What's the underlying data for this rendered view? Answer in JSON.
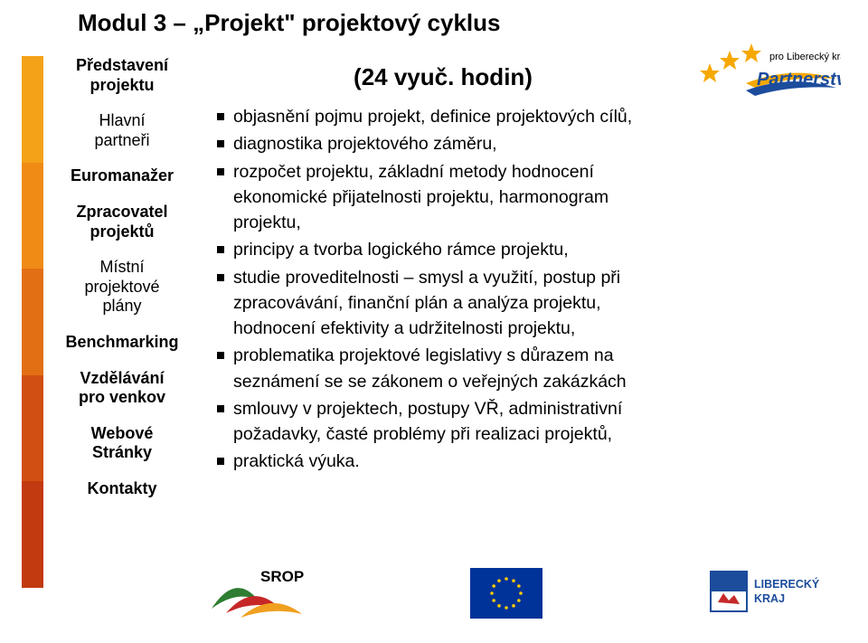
{
  "title": "Modul 3 – „Projekt\" projektový cyklus",
  "sidebar": {
    "items": [
      {
        "lines": [
          "Představení",
          "projektu"
        ],
        "bold": true
      },
      {
        "lines": [
          "Hlavní",
          "partneři"
        ],
        "bold": false
      },
      {
        "lines": [
          "Euromanažer"
        ],
        "bold": true
      },
      {
        "lines": [
          "Zpracovatel",
          "projektů"
        ],
        "bold": true
      },
      {
        "lines": [
          "Místní",
          "projektové",
          "plány"
        ],
        "bold": false
      },
      {
        "lines": [
          "Benchmarking"
        ],
        "bold": true
      },
      {
        "lines": [
          "Vzdělávání",
          "pro venkov"
        ],
        "bold": true
      },
      {
        "lines": [
          "Webové",
          "Stránky"
        ],
        "bold": true
      },
      {
        "lines": [
          "Kontakty"
        ],
        "bold": true
      }
    ]
  },
  "side_bar_colors": [
    "#f4a218",
    "#f08b16",
    "#e36f14",
    "#d14f12",
    "#c23a10"
  ],
  "subhead": "(24 vyuč. hodin)",
  "bullets": [
    "objasnění pojmu projekt, definice projektových cílů,",
    "diagnostika projektového záměru,",
    "rozpočet projektu, základní metody hodnocení ekonomické přijatelnosti projektu, harmonogram projektu,",
    "principy a tvorba logického rámce projektu,",
    "studie proveditelnosti – smysl a využití, postup při zpracovávání, finanční plán a analýza projektu, hodnocení efektivity a udržitelnosti projektu,",
    "problematika projektové legislativy s důrazem na seznámení se se zákonem o veřejných zakázkách",
    "smlouvy v projektech, postupy VŘ, administrativní požadavky, časté problémy při realizaci projektů,",
    "praktická výuka."
  ],
  "logo_top": {
    "line1": "pro Liberecký kraj",
    "line2": "Partnerství",
    "star_color": "#f6a800",
    "blue": "#1c4c9c"
  },
  "logo_srop": {
    "label": "SROP",
    "green": "#2e7d32",
    "red": "#c62828",
    "gold": "#f0a020"
  },
  "logo_eu": {
    "blue": "#003399",
    "gold": "#ffcc00"
  },
  "logo_kraj": {
    "label": "LIBERECKÝ KRAJ",
    "blue": "#1c4c9c",
    "red": "#c62828"
  }
}
